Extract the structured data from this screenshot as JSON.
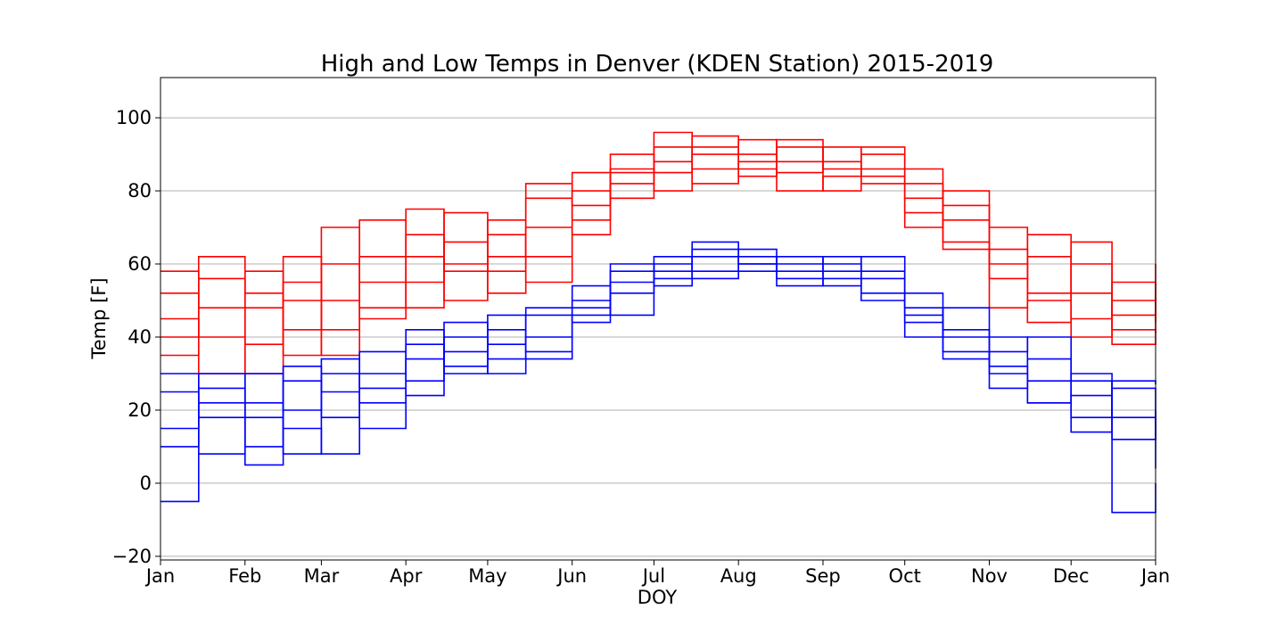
{
  "chart_data": {
    "type": "line",
    "title": "High and Low Temps in Denver (KDEN Station) 2015-2019",
    "xlabel": "DOY",
    "ylabel": "Temp [F]",
    "xlim": [
      1,
      366
    ],
    "ylim": [
      -21,
      111
    ],
    "x_ticks": [
      {
        "label": "Jan",
        "doy": 1
      },
      {
        "label": "Feb",
        "doy": 32
      },
      {
        "label": "Mar",
        "doy": 60
      },
      {
        "label": "Apr",
        "doy": 91
      },
      {
        "label": "May",
        "doy": 121
      },
      {
        "label": "Jun",
        "doy": 152
      },
      {
        "label": "Jul",
        "doy": 182
      },
      {
        "label": "Aug",
        "doy": 213
      },
      {
        "label": "Sep",
        "doy": 244
      },
      {
        "label": "Oct",
        "doy": 274
      },
      {
        "label": "Nov",
        "doy": 305
      },
      {
        "label": "Dec",
        "doy": 335
      },
      {
        "label": "Jan",
        "doy": 366
      }
    ],
    "y_ticks": [
      -20,
      0,
      20,
      40,
      60,
      80,
      100
    ],
    "grid": "y",
    "step_style": "steps-post",
    "colors": {
      "high": "#ff0000",
      "low": "#0000ff"
    },
    "series": [
      {
        "kind": "high",
        "color": "#ff0000",
        "doy": [
          1,
          15,
          32,
          46,
          60,
          74,
          91,
          105,
          121,
          135,
          152,
          166,
          182,
          196,
          213,
          227,
          244,
          258,
          274,
          288,
          305,
          319,
          335,
          350,
          366
        ],
        "values": [
          52,
          40,
          38,
          55,
          35,
          62,
          68,
          58,
          72,
          62,
          80,
          85,
          88,
          92,
          90,
          85,
          88,
          82,
          78,
          66,
          60,
          50,
          52,
          42,
          41
        ]
      },
      {
        "kind": "high",
        "color": "#ff0000",
        "doy": [
          1,
          15,
          32,
          46,
          60,
          74,
          91,
          105,
          121,
          135,
          152,
          166,
          182,
          196,
          213,
          227,
          244,
          258,
          274,
          288,
          305,
          319,
          335,
          350,
          366
        ],
        "values": [
          35,
          56,
          48,
          62,
          50,
          45,
          55,
          74,
          58,
          78,
          72,
          90,
          85,
          95,
          84,
          92,
          86,
          90,
          70,
          80,
          48,
          62,
          45,
          55,
          48
        ]
      },
      {
        "kind": "high",
        "color": "#ff0000",
        "doy": [
          1,
          15,
          32,
          46,
          60,
          74,
          91,
          105,
          121,
          135,
          152,
          166,
          182,
          196,
          213,
          227,
          244,
          258,
          274,
          288,
          305,
          319,
          335,
          350,
          366
        ],
        "values": [
          45,
          30,
          58,
          42,
          70,
          55,
          62,
          50,
          68,
          55,
          85,
          78,
          92,
          82,
          94,
          88,
          92,
          84,
          82,
          72,
          70,
          44,
          60,
          38,
          60
        ]
      },
      {
        "kind": "high",
        "color": "#ff0000",
        "doy": [
          1,
          15,
          32,
          46,
          60,
          74,
          91,
          105,
          121,
          135,
          152,
          166,
          182,
          196,
          213,
          227,
          244,
          258,
          274,
          288,
          305,
          319,
          335,
          350,
          366
        ],
        "values": [
          58,
          48,
          30,
          50,
          42,
          72,
          48,
          66,
          52,
          70,
          68,
          86,
          80,
          90,
          86,
          80,
          84,
          92,
          74,
          64,
          56,
          68,
          40,
          50,
          44
        ]
      },
      {
        "kind": "high",
        "color": "#ff0000",
        "doy": [
          1,
          15,
          32,
          46,
          60,
          74,
          91,
          105,
          121,
          135,
          152,
          166,
          182,
          196,
          213,
          227,
          244,
          258,
          274,
          288,
          305,
          319,
          335,
          350,
          366
        ],
        "values": [
          40,
          62,
          52,
          35,
          60,
          48,
          75,
          60,
          62,
          82,
          76,
          82,
          96,
          86,
          88,
          94,
          80,
          86,
          86,
          76,
          64,
          52,
          66,
          46,
          52
        ]
      },
      {
        "kind": "low",
        "color": "#0000ff",
        "doy": [
          1,
          15,
          32,
          46,
          60,
          74,
          91,
          105,
          121,
          135,
          152,
          166,
          182,
          196,
          213,
          227,
          244,
          258,
          274,
          288,
          305,
          319,
          335,
          350,
          366
        ],
        "values": [
          15,
          22,
          10,
          28,
          18,
          30,
          38,
          32,
          42,
          36,
          48,
          55,
          58,
          62,
          60,
          56,
          58,
          52,
          44,
          36,
          32,
          22,
          24,
          18,
          13
        ]
      },
      {
        "kind": "low",
        "color": "#0000ff",
        "doy": [
          1,
          15,
          32,
          46,
          60,
          74,
          91,
          105,
          121,
          135,
          152,
          166,
          182,
          196,
          213,
          227,
          244,
          258,
          274,
          288,
          305,
          319,
          335,
          350,
          366
        ],
        "values": [
          -5,
          30,
          22,
          15,
          8,
          36,
          28,
          40,
          34,
          46,
          44,
          52,
          62,
          58,
          64,
          60,
          54,
          56,
          48,
          42,
          26,
          34,
          14,
          26,
          4
        ]
      },
      {
        "kind": "low",
        "color": "#0000ff",
        "doy": [
          1,
          15,
          32,
          46,
          60,
          74,
          91,
          105,
          121,
          135,
          152,
          166,
          182,
          196,
          213,
          227,
          244,
          258,
          274,
          288,
          305,
          319,
          335,
          350,
          366
        ],
        "values": [
          25,
          8,
          30,
          20,
          30,
          22,
          42,
          30,
          38,
          40,
          50,
          58,
          56,
          64,
          58,
          62,
          60,
          50,
          40,
          48,
          40,
          28,
          30,
          12,
          20
        ]
      },
      {
        "kind": "low",
        "color": "#0000ff",
        "doy": [
          1,
          15,
          32,
          46,
          60,
          74,
          91,
          105,
          121,
          135,
          152,
          166,
          182,
          196,
          213,
          227,
          244,
          258,
          274,
          288,
          305,
          319,
          335,
          350,
          366
        ],
        "values": [
          30,
          18,
          5,
          32,
          25,
          15,
          34,
          44,
          30,
          48,
          54,
          46,
          60,
          56,
          62,
          58,
          62,
          58,
          52,
          34,
          36,
          40,
          18,
          28,
          27
        ]
      },
      {
        "kind": "low",
        "color": "#0000ff",
        "doy": [
          1,
          15,
          32,
          46,
          60,
          74,
          91,
          105,
          121,
          135,
          152,
          166,
          182,
          196,
          213,
          227,
          244,
          258,
          274,
          288,
          305,
          319,
          335,
          350,
          366
        ],
        "values": [
          10,
          26,
          18,
          8,
          34,
          26,
          24,
          36,
          46,
          34,
          46,
          60,
          54,
          66,
          60,
          54,
          56,
          62,
          46,
          40,
          30,
          22,
          28,
          -8,
          0
        ]
      }
    ]
  }
}
